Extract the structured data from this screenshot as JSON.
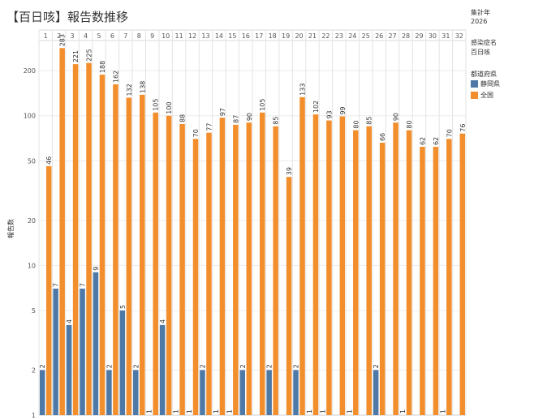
{
  "title": "【百日咳】報告数推移",
  "side_panel": {
    "year_label": "集計年",
    "year_value": "2026",
    "disease_label": "感染症名",
    "disease_value": "百日咳",
    "pref_label": "都道府県"
  },
  "colors": {
    "shizuoka": "#4e79a7",
    "national": "#f28e2b"
  },
  "chart_data": {
    "type": "bar",
    "scale": "log",
    "ylabel": "報告数",
    "ylim": [
      1,
      310
    ],
    "yticks": [
      1,
      2,
      5,
      10,
      20,
      50,
      100,
      200
    ],
    "grid": true,
    "legend_position": "right",
    "categories": [
      "1",
      "2",
      "3",
      "4",
      "5",
      "6",
      "7",
      "8",
      "9",
      "10",
      "11",
      "12",
      "13",
      "14",
      "15",
      "16",
      "17",
      "18",
      "19",
      "20",
      "21",
      "22",
      "23",
      "24",
      "25",
      "26",
      "27",
      "28",
      "29",
      "30",
      "31",
      "32"
    ],
    "series": [
      {
        "name": "静岡県",
        "color": "#4e79a7",
        "values": [
          2,
          7,
          4,
          7,
          9,
          2,
          5,
          2,
          1,
          4,
          1,
          1,
          2,
          1,
          1,
          2,
          null,
          2,
          null,
          2,
          1,
          1,
          null,
          1,
          null,
          2,
          null,
          1,
          null,
          null,
          1,
          null
        ]
      },
      {
        "name": "全国",
        "color": "#f28e2b",
        "values": [
          46,
          283,
          221,
          225,
          188,
          162,
          132,
          138,
          105,
          100,
          88,
          70,
          77,
          97,
          87,
          90,
          105,
          85,
          39,
          133,
          102,
          93,
          99,
          80,
          85,
          66,
          90,
          80,
          62,
          62,
          70,
          76
        ]
      }
    ]
  }
}
